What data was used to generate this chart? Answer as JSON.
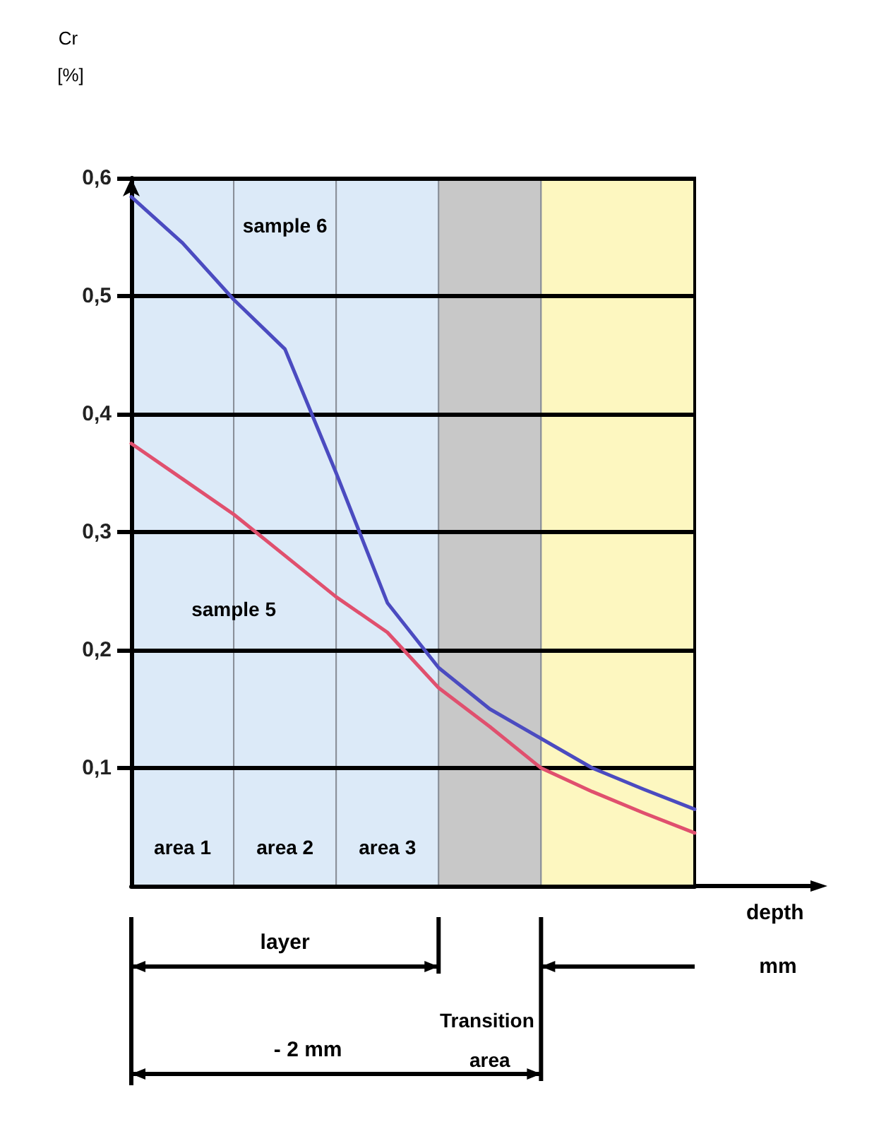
{
  "chart_data": {
    "type": "line",
    "ylabel": "Cr [%]",
    "xlabel": "depth mm",
    "categories": [
      null,
      null,
      null,
      null,
      null,
      null,
      null,
      null,
      null,
      null,
      null,
      null
    ],
    "ylim": [
      0,
      0.6
    ],
    "yticks": [
      {
        "value": 0.1,
        "label": "0,1"
      },
      {
        "value": 0.2,
        "label": "0,2"
      },
      {
        "value": 0.3,
        "label": "0,3"
      },
      {
        "value": 0.4,
        "label": "0,4"
      },
      {
        "value": 0.5,
        "label": "0,5"
      },
      {
        "value": 0.6,
        "label": "0,6"
      }
    ],
    "grid": "y",
    "legend": false,
    "marker": "none",
    "series": [
      {
        "name": "sample 6",
        "color": "#4b4bc0",
        "values": [
          0.584,
          0.545,
          0.497,
          0.455,
          0.35,
          0.24,
          0.185,
          0.15,
          0.125,
          0.1,
          0.082,
          0.065
        ]
      },
      {
        "name": "sample 5",
        "color": "#e0506e",
        "values": [
          0.375,
          0.345,
          0.315,
          0.28,
          0.245,
          0.215,
          0.168,
          0.135,
          0.1,
          0.08,
          0.062,
          0.045
        ]
      }
    ],
    "annotations": [
      "area 1",
      "area 2",
      "area 3",
      "Transition area",
      "layer",
      "- 2 mm"
    ]
  }
}
